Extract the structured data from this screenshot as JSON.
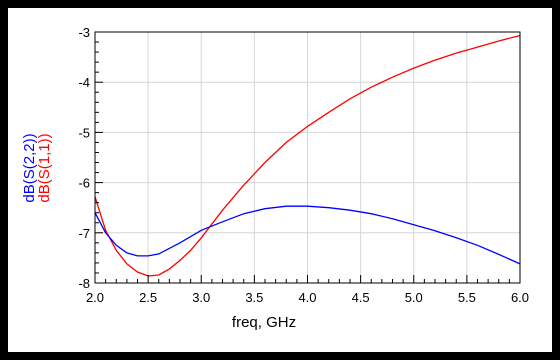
{
  "chart_data": {
    "type": "line",
    "xlabel": "freq, GHz",
    "ylabels": [
      {
        "text": "dB(S(2,2))",
        "color": "#0000ff"
      },
      {
        "text": "dB(S(1,1))",
        "color": "#ff0000"
      }
    ],
    "xlim": [
      2.0,
      6.0
    ],
    "ylim": [
      -8,
      -3
    ],
    "x_ticks": [
      "2.0",
      "2.5",
      "3.0",
      "3.5",
      "4.0",
      "4.5",
      "5.0",
      "5.5",
      "6.0"
    ],
    "y_ticks": [
      "-3",
      "-4",
      "-5",
      "-6",
      "-7",
      "-8"
    ],
    "grid": true,
    "series": [
      {
        "name": "dB(S(1,1))",
        "color": "#ff0000",
        "x": [
          2.0,
          2.1,
          2.2,
          2.3,
          2.4,
          2.5,
          2.6,
          2.7,
          2.8,
          2.9,
          3.0,
          3.2,
          3.4,
          3.6,
          3.8,
          4.0,
          4.2,
          4.4,
          4.6,
          4.8,
          5.0,
          5.2,
          5.4,
          5.6,
          5.8,
          6.0
        ],
        "values": [
          -6.28,
          -6.95,
          -7.35,
          -7.62,
          -7.78,
          -7.86,
          -7.84,
          -7.72,
          -7.55,
          -7.35,
          -7.1,
          -6.55,
          -6.05,
          -5.6,
          -5.2,
          -4.88,
          -4.6,
          -4.33,
          -4.1,
          -3.9,
          -3.72,
          -3.56,
          -3.42,
          -3.3,
          -3.18,
          -3.07
        ]
      },
      {
        "name": "dB(S(2,2))",
        "color": "#0000ff",
        "x": [
          2.0,
          2.1,
          2.2,
          2.3,
          2.4,
          2.5,
          2.6,
          2.8,
          3.0,
          3.2,
          3.4,
          3.6,
          3.8,
          4.0,
          4.2,
          4.4,
          4.6,
          4.8,
          5.0,
          5.2,
          5.4,
          5.6,
          5.8,
          6.0
        ],
        "values": [
          -6.6,
          -7.0,
          -7.25,
          -7.4,
          -7.46,
          -7.46,
          -7.42,
          -7.2,
          -6.95,
          -6.78,
          -6.62,
          -6.52,
          -6.47,
          -6.47,
          -6.5,
          -6.55,
          -6.62,
          -6.72,
          -6.84,
          -6.96,
          -7.1,
          -7.25,
          -7.43,
          -7.62
        ]
      }
    ]
  }
}
